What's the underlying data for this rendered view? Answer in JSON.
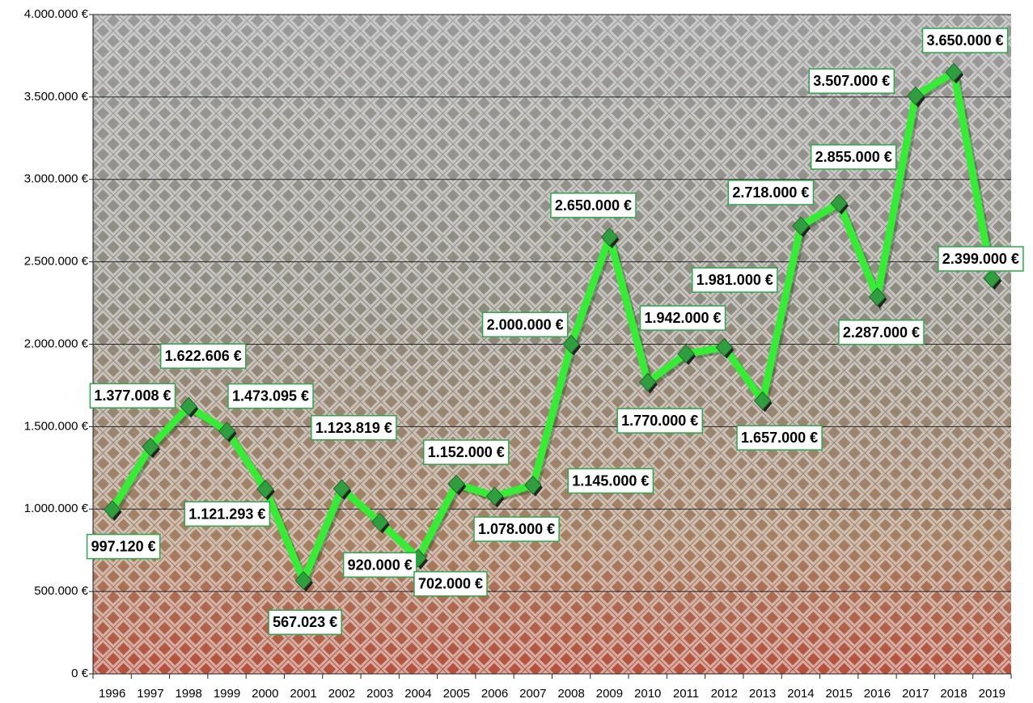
{
  "chart_data": {
    "type": "line",
    "categories": [
      "1996",
      "1997",
      "1998",
      "1999",
      "2000",
      "2001",
      "2002",
      "2003",
      "2004",
      "2005",
      "2006",
      "2007",
      "2008",
      "2009",
      "2010",
      "2011",
      "2012",
      "2013",
      "2014",
      "2015",
      "2016",
      "2017",
      "2018",
      "2019"
    ],
    "series": [
      {
        "color": "#33ee33",
        "values": [
          997120,
          1377008,
          1622606,
          1473095,
          1121293,
          567023,
          1123819,
          920000,
          702000,
          1152000,
          1078000,
          1145000,
          2000000,
          2650000,
          1770000,
          1942000,
          1981000,
          1657000,
          2718000,
          2855000,
          2287000,
          3507000,
          3650000,
          2399000
        ],
        "value_labels": [
          "997.120 €",
          "1.377.008 €",
          "1.622.606 €",
          "1.473.095 €",
          "1.121.293 €",
          "567.023 €",
          "1.123.819 €",
          "920.000 €",
          "702.000 €",
          "1.152.000 €",
          "1.078.000 €",
          "1.145.000 €",
          "2.000.000 €",
          "2.650.000 €",
          "1.770.000 €",
          "1.942.000 €",
          "1.981.000 €",
          "1.657.000 €",
          "2.718.000 €",
          "2.855.000 €",
          "2.287.000 €",
          "3.507.000 €",
          "3.650.000 €",
          "2.399.000 €"
        ]
      }
    ],
    "ylim": [
      0,
      4000000
    ],
    "yticks": [
      {
        "value": 0,
        "label": "0 €"
      },
      {
        "value": 500000,
        "label": "500.000 €"
      },
      {
        "value": 1000000,
        "label": "1.000.000 €"
      },
      {
        "value": 1500000,
        "label": "1.500.000 €"
      },
      {
        "value": 2000000,
        "label": "2.000.000 €"
      },
      {
        "value": 2500000,
        "label": "2.500.000 €"
      },
      {
        "value": 3000000,
        "label": "3.000.000 €"
      },
      {
        "value": 3500000,
        "label": "3.500.000 €"
      },
      {
        "value": 4000000,
        "label": "4.000.000 €"
      }
    ],
    "grid": true
  }
}
